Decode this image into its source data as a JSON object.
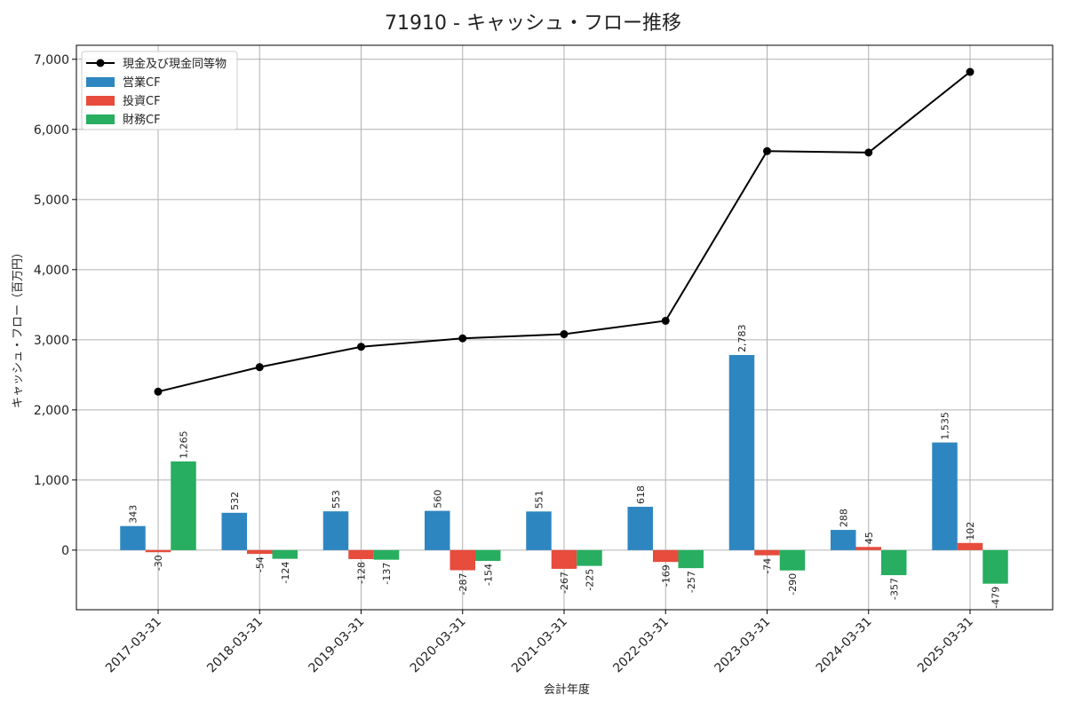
{
  "chart_data": {
    "type": "bar",
    "title": "71910 - キャッシュ・フロー推移",
    "xlabel": "会計年度",
    "ylabel": "キャッシュ・フロー（百万円）",
    "ylim": [
      -850,
      7200
    ],
    "yticks": [
      0,
      1000,
      2000,
      3000,
      4000,
      5000,
      6000,
      7000
    ],
    "ytick_labels": [
      "0",
      "1,000",
      "2,000",
      "3,000",
      "4,000",
      "5,000",
      "6,000",
      "7,000"
    ],
    "grid": true,
    "legend_position": "top-left",
    "categories": [
      "2017-03-31",
      "2018-03-31",
      "2019-03-31",
      "2020-03-31",
      "2021-03-31",
      "2022-03-31",
      "2023-03-31",
      "2024-03-31",
      "2025-03-31"
    ],
    "series": [
      {
        "name": "営業CF",
        "kind": "bar",
        "color": "#2e86c1",
        "values": [
          343,
          532,
          553,
          560,
          551,
          618,
          2783,
          288,
          1535
        ],
        "labels": [
          "343",
          "532",
          "553",
          "560",
          "551",
          "618",
          "2,783",
          "288",
          "1,535"
        ]
      },
      {
        "name": "投資CF",
        "kind": "bar",
        "color": "#e74c3c",
        "values": [
          -30,
          -54,
          -128,
          -287,
          -267,
          -169,
          -74,
          45,
          102
        ],
        "labels": [
          "-30",
          "-54",
          "-128",
          "-287",
          "-267",
          "-169",
          "-74",
          "45",
          "102"
        ]
      },
      {
        "name": "財務CF",
        "kind": "bar",
        "color": "#27ae60",
        "values": [
          1265,
          -124,
          -137,
          -154,
          -225,
          -257,
          -290,
          -357,
          -479
        ],
        "labels": [
          "1,265",
          "-124",
          "-137",
          "-154",
          "-225",
          "-257",
          "-290",
          "-357",
          "-479"
        ]
      },
      {
        "name": "現金及び現金同等物",
        "kind": "line",
        "color": "#000000",
        "values": [
          2260,
          2610,
          2900,
          3020,
          3080,
          3270,
          5690,
          5670,
          6820
        ]
      }
    ]
  }
}
